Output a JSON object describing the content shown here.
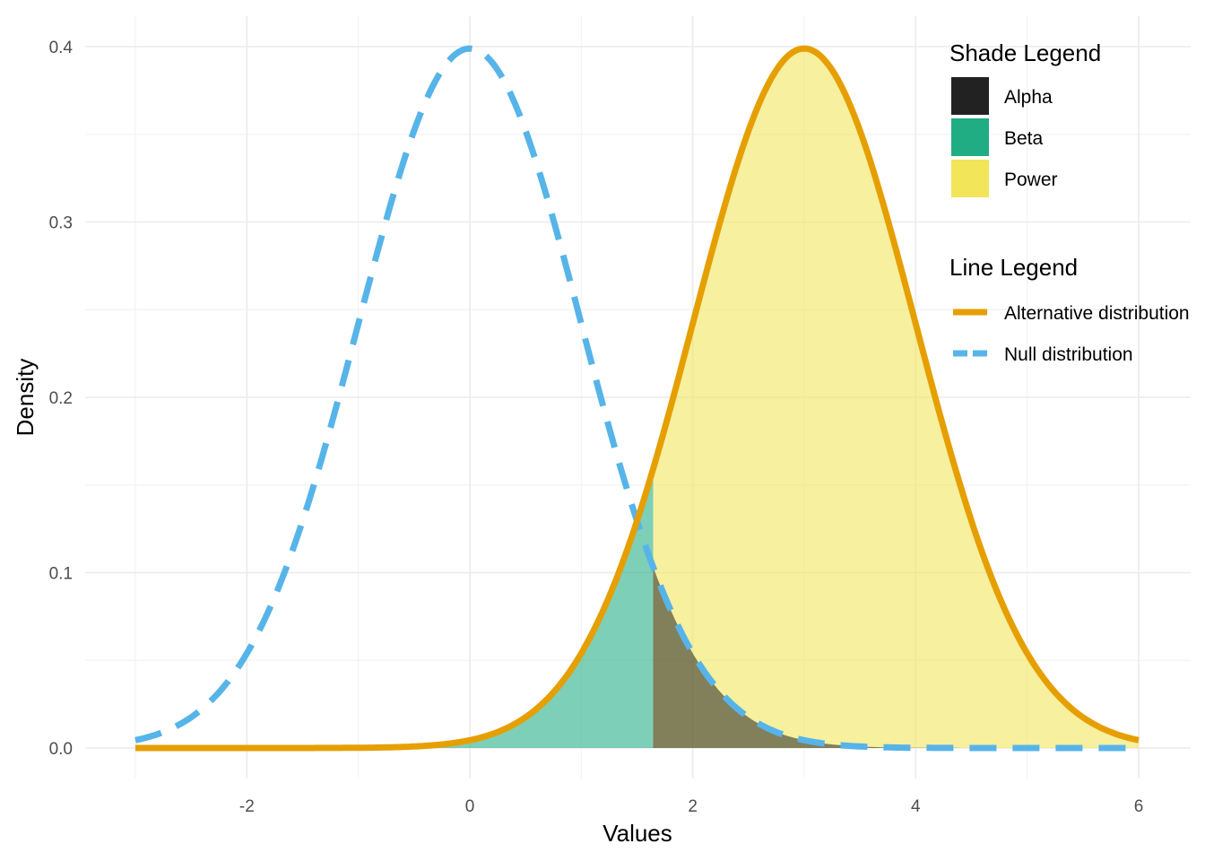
{
  "chart_data": {
    "type": "area",
    "xlabel": "Values",
    "ylabel": "Density",
    "xlim": [
      -3,
      6
    ],
    "ylim": [
      0,
      0.4
    ],
    "x_ticks": [
      -2,
      0,
      2,
      4,
      6
    ],
    "y_ticks": [
      0.0,
      0.1,
      0.2,
      0.3,
      0.4
    ],
    "y_tick_labels": [
      "0.0",
      "0.1",
      "0.2",
      "0.3",
      "0.4"
    ],
    "grid": true,
    "critical_value": 1.645,
    "series": [
      {
        "name": "Null distribution",
        "type": "line",
        "style": "dashed",
        "color": "#56B4E9",
        "mean": 0,
        "sd": 1,
        "x": [
          -3,
          -2.5,
          -2,
          -1.5,
          -1,
          -0.5,
          0,
          0.5,
          1,
          1.5,
          2,
          2.5,
          3,
          3.5,
          4,
          4.5,
          5,
          5.5,
          6
        ],
        "y": [
          0.004,
          0.018,
          0.054,
          0.13,
          0.242,
          0.352,
          0.399,
          0.352,
          0.242,
          0.13,
          0.054,
          0.018,
          0.004,
          0.001,
          0.0,
          0.0,
          0.0,
          0.0,
          0.0
        ]
      },
      {
        "name": "Alternative distribution",
        "type": "line",
        "style": "solid",
        "color": "#E69F00",
        "mean": 3,
        "sd": 1,
        "x": [
          -3,
          -2.5,
          -2,
          -1.5,
          -1,
          -0.5,
          0,
          0.5,
          1,
          1.5,
          2,
          2.5,
          3,
          3.5,
          4,
          4.5,
          5,
          5.5,
          6
        ],
        "y": [
          0.0,
          0.0,
          0.0,
          0.0,
          0.0,
          0.001,
          0.004,
          0.018,
          0.054,
          0.13,
          0.242,
          0.352,
          0.399,
          0.352,
          0.242,
          0.13,
          0.054,
          0.018,
          0.004
        ]
      }
    ],
    "shades": [
      {
        "name": "Alpha",
        "color": "#222222",
        "region": "null density for x > 1.645"
      },
      {
        "name": "Beta",
        "color": "#21AD84",
        "region": "alternative density for x < 1.645"
      },
      {
        "name": "Power",
        "color": "#F2E55A",
        "region": "alternative density for x > 1.645"
      }
    ],
    "legends": {
      "shade_title": "Shade Legend",
      "shade_items": [
        {
          "label": "Alpha",
          "color": "#222222"
        },
        {
          "label": "Beta",
          "color": "#21AD84"
        },
        {
          "label": "Power",
          "color": "#F2E55A"
        }
      ],
      "line_title": "Line Legend",
      "line_items": [
        {
          "label": "Alternative distribution",
          "color": "#E69F00",
          "style": "solid"
        },
        {
          "label": "Null distribution",
          "color": "#56B4E9",
          "style": "dashed"
        }
      ],
      "placement": "top-right"
    }
  }
}
